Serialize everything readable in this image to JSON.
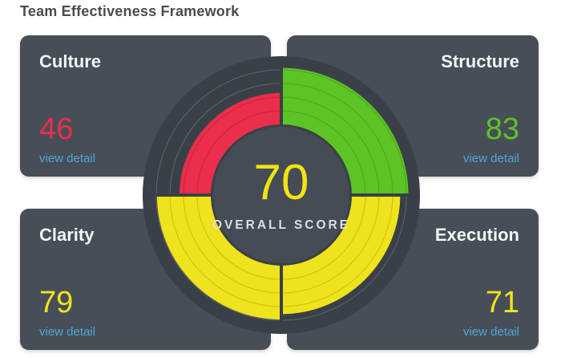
{
  "header": {
    "title": "Team Effectiveness Framework"
  },
  "theme": {
    "page_bg": "#ffffff",
    "title_color": "#4a4b4d",
    "card_bg": "#474e57",
    "card_title_color": "#f3f5f6",
    "gauge_bg": "#3a4047",
    "hub_bg": "#464c55",
    "link_color": "#4fa6d8",
    "overall_score_color": "#f0e312",
    "overall_label_color": "#dcdfe2"
  },
  "gauge": {
    "overall_score": "70",
    "overall_label": "OVERALL SCORE",
    "gridline_scores": [
      20,
      40,
      60,
      80
    ]
  },
  "metrics": [
    {
      "id": "culture",
      "label": "Culture",
      "score": 46,
      "color": "#ea2e4b",
      "link": "view detail",
      "position": "top-left"
    },
    {
      "id": "structure",
      "label": "Structure",
      "score": 83,
      "color": "#5cc425",
      "link": "view detail",
      "position": "top-right"
    },
    {
      "id": "clarity",
      "label": "Clarity",
      "score": 79,
      "color": "#efe31d",
      "link": "view detail",
      "position": "bottom-left"
    },
    {
      "id": "execution",
      "label": "Execution",
      "score": 71,
      "color": "#efe31d",
      "link": "view detail",
      "position": "bottom-right"
    }
  ],
  "chart_data": {
    "type": "gauge",
    "variant": "quadrant-radial",
    "title": "Team Effectiveness Framework",
    "categories": [
      "Culture",
      "Structure",
      "Clarity",
      "Execution"
    ],
    "values": [
      46,
      83,
      79,
      71
    ],
    "overall_score": 70,
    "range": [
      0,
      100
    ],
    "gridline_values": [
      20,
      40,
      60,
      80
    ],
    "segment_colors": [
      "#ea2e4b",
      "#5cc425",
      "#efe31d",
      "#efe31d"
    ],
    "positions": [
      "top-left",
      "top-right",
      "bottom-left",
      "bottom-right"
    ],
    "legend": "none",
    "grid": true
  }
}
